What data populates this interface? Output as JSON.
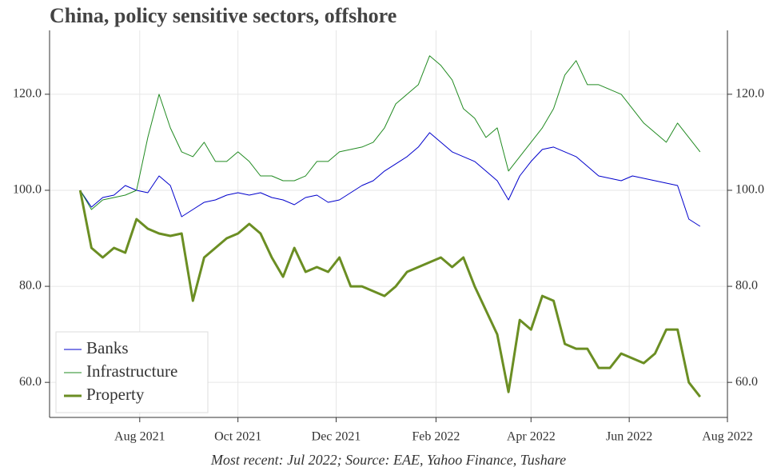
{
  "chart_data": {
    "type": "line",
    "title": "China, policy sensitive sectors, offshore",
    "footnote": "Most recent: Jul 2022; Source: EAE, Yahoo Finance, Tushare",
    "x": [
      "2021-06-25",
      "2021-07-02",
      "2021-07-09",
      "2021-07-16",
      "2021-07-23",
      "2021-07-30",
      "2021-08-06",
      "2021-08-13",
      "2021-08-20",
      "2021-08-27",
      "2021-09-03",
      "2021-09-10",
      "2021-09-17",
      "2021-09-24",
      "2021-10-01",
      "2021-10-08",
      "2021-10-15",
      "2021-10-22",
      "2021-10-29",
      "2021-11-05",
      "2021-11-12",
      "2021-11-19",
      "2021-11-26",
      "2021-12-03",
      "2021-12-10",
      "2021-12-17",
      "2021-12-24",
      "2021-12-31",
      "2022-01-07",
      "2022-01-14",
      "2022-01-21",
      "2022-01-28",
      "2022-02-04",
      "2022-02-11",
      "2022-02-18",
      "2022-02-25",
      "2022-03-04",
      "2022-03-11",
      "2022-03-18",
      "2022-03-25",
      "2022-04-01",
      "2022-04-08",
      "2022-04-15",
      "2022-04-22",
      "2022-04-29",
      "2022-05-06",
      "2022-05-13",
      "2022-05-20",
      "2022-05-27",
      "2022-06-03",
      "2022-06-10",
      "2022-06-17",
      "2022-06-24",
      "2022-07-01",
      "2022-07-08",
      "2022-07-15"
    ],
    "series": [
      {
        "name": "Banks",
        "color": "#0000cc",
        "line_width": 1,
        "values": [
          100,
          96.5,
          98.5,
          99,
          101,
          100,
          99.5,
          103,
          101,
          94.5,
          96,
          97.5,
          98,
          99,
          99.5,
          99,
          99.5,
          98.5,
          98,
          97,
          98.5,
          99,
          97.5,
          98,
          99.5,
          101,
          102,
          104,
          105.5,
          107,
          109,
          112,
          110,
          108,
          107,
          106,
          104,
          102,
          98,
          103,
          106,
          108.5,
          109,
          108,
          107,
          105,
          103,
          102.5,
          102,
          103,
          102.5,
          102,
          101.5,
          101,
          94,
          92.5
        ]
      },
      {
        "name": "Infrastructure",
        "color": "#228b22",
        "line_width": 1,
        "values": [
          100,
          96,
          98,
          98.5,
          99,
          100,
          111,
          120,
          113,
          108,
          107,
          110,
          106,
          106,
          108,
          106,
          103,
          103,
          102,
          102,
          103,
          106,
          106,
          108,
          108.5,
          109,
          110,
          113,
          118,
          120,
          122,
          128,
          126,
          123,
          117,
          115,
          111,
          113,
          104,
          107,
          110,
          113,
          117,
          124,
          127,
          122,
          122,
          121,
          120,
          117,
          114,
          112,
          110,
          114,
          111,
          108
        ]
      },
      {
        "name": "Property",
        "color": "#6b8e23",
        "line_width": 3,
        "values": [
          100,
          88,
          86,
          88,
          87,
          94,
          92,
          91,
          90.5,
          91,
          77,
          86,
          88,
          90,
          91,
          93,
          91,
          86,
          82,
          88,
          83,
          84,
          83,
          86,
          80,
          80,
          79,
          78,
          80,
          83,
          84,
          85,
          86,
          84,
          86,
          80,
          75,
          70,
          58,
          73,
          71,
          78,
          77,
          68,
          67,
          67,
          63,
          63,
          66,
          65,
          64,
          66,
          71,
          71,
          60,
          57
        ]
      }
    ],
    "xlim": [
      "2021-06-06",
      "2022-08-01"
    ],
    "xticks": [
      {
        "value": "2021-08-01",
        "label": "Aug 2021"
      },
      {
        "value": "2021-10-01",
        "label": "Oct 2021"
      },
      {
        "value": "2021-12-01",
        "label": "Dec 2021"
      },
      {
        "value": "2022-02-01",
        "label": "Feb 2022"
      },
      {
        "value": "2022-04-01",
        "label": "Apr 2022"
      },
      {
        "value": "2022-06-01",
        "label": "Jun 2022"
      },
      {
        "value": "2022-08-01",
        "label": "Aug 2022"
      }
    ],
    "ylim": [
      52.7,
      133.3
    ],
    "yticks": [
      {
        "value": 60,
        "label": "60.0"
      },
      {
        "value": 80,
        "label": "80.0"
      },
      {
        "value": 100,
        "label": "100.0"
      },
      {
        "value": 120,
        "label": "120.0"
      }
    ],
    "grid": true,
    "legend": "lower left"
  }
}
